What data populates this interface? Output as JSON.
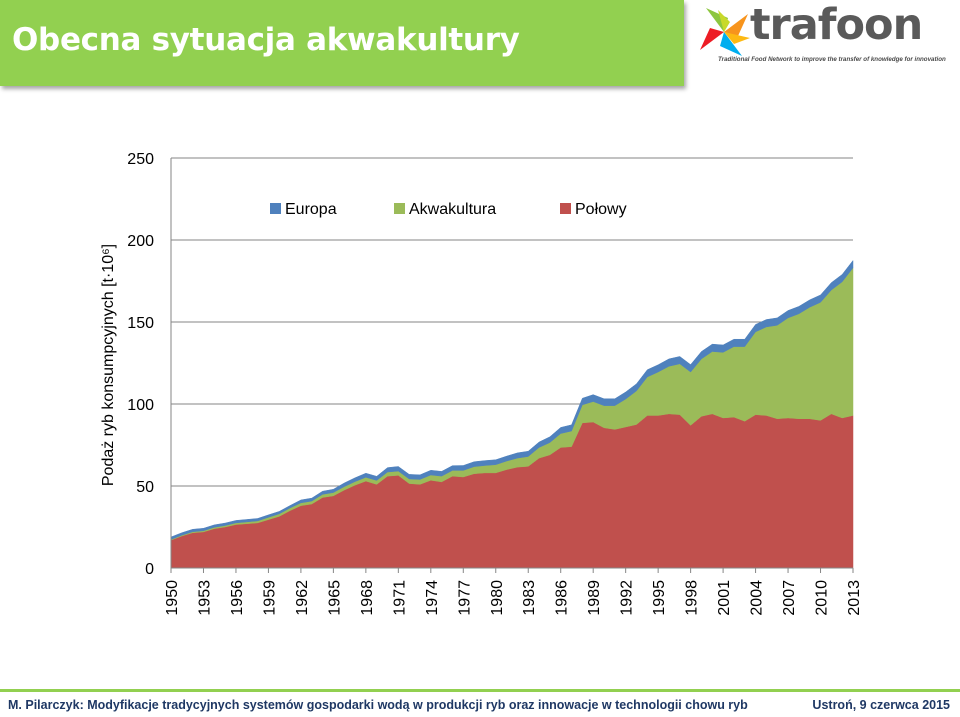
{
  "slide": {
    "title": "Obecna sytuacja akwakultury"
  },
  "logo": {
    "word": "trafoon",
    "tagline": "Traditional Food Network to improve the transfer of knowledge for innovation"
  },
  "footer": {
    "left": "M. Pilarczyk: Modyfikacje tradycyjnych systemów gospodarki wodą w produkcji ryb oraz innowacje w technologii chowu ryb",
    "right": "Ustroń, 9 czerwca 2015"
  },
  "colors": {
    "title_bar": "#92d050",
    "europa": "#4f81bd",
    "akwakultura": "#9bbb59",
    "polowy": "#c0504d"
  },
  "chart_data": {
    "type": "area",
    "stacked": true,
    "title": "",
    "xlabel": "",
    "ylabel": "Podaż ryb konsumpcyjnych [t·10⁶]",
    "ylim": [
      0,
      250
    ],
    "yticks": [
      0,
      50,
      100,
      150,
      200,
      250
    ],
    "grid": true,
    "legend_position": "top",
    "x": [
      1950,
      1951,
      1952,
      1953,
      1954,
      1955,
      1956,
      1957,
      1958,
      1959,
      1960,
      1961,
      1962,
      1963,
      1964,
      1965,
      1966,
      1967,
      1968,
      1969,
      1970,
      1971,
      1972,
      1973,
      1974,
      1975,
      1976,
      1977,
      1978,
      1979,
      1980,
      1981,
      1982,
      1983,
      1984,
      1985,
      1986,
      1987,
      1988,
      1989,
      1990,
      1991,
      1992,
      1993,
      1994,
      1995,
      1996,
      1997,
      1998,
      1999,
      2000,
      2001,
      2002,
      2003,
      2004,
      2005,
      2006,
      2007,
      2008,
      2009,
      2010,
      2011,
      2012,
      2013
    ],
    "xtick_labels": [
      "1950",
      "1953",
      "1956",
      "1959",
      "1962",
      "1965",
      "1968",
      "1971",
      "1974",
      "1977",
      "1980",
      "1983",
      "1986",
      "1989",
      "1992",
      "1995",
      "1998",
      "2001",
      "2004",
      "2007",
      "2010",
      "2013"
    ],
    "series": [
      {
        "name": "Połowy",
        "color": "#c0504d",
        "values": [
          17,
          19.5,
          21.5,
          22,
          24,
          25,
          26.5,
          27,
          27.5,
          29.5,
          31.5,
          35,
          38,
          39,
          43,
          44,
          47.5,
          50.5,
          53,
          51,
          56,
          56.5,
          51.5,
          51,
          53.5,
          52.5,
          56,
          55.5,
          57.5,
          58,
          58,
          60,
          61.5,
          62,
          67,
          69,
          73.5,
          74,
          88.5,
          89,
          85.5,
          84.5,
          86,
          87.5,
          93,
          93,
          94,
          93.5,
          87,
          92.5,
          94,
          91.5,
          92,
          89.5,
          93.5,
          93,
          91,
          91.5,
          91,
          91,
          90,
          94,
          91.5,
          93
        ]
      },
      {
        "name": "Akwakultura",
        "color": "#9bbb59",
        "values": [
          0.4,
          0.5,
          0.6,
          0.7,
          0.8,
          0.9,
          1,
          1.1,
          1.2,
          1.4,
          1.5,
          1.6,
          1.7,
          1.8,
          1.9,
          2,
          2.1,
          2.2,
          2.3,
          2.4,
          2.5,
          2.6,
          2.8,
          3,
          3.2,
          3.5,
          3.5,
          4,
          4.3,
          4.5,
          5,
          5.2,
          5.5,
          6,
          6.5,
          7.5,
          8.5,
          9.5,
          11,
          12.5,
          13.5,
          14.5,
          17,
          20.5,
          23.5,
          26.5,
          29,
          31,
          32.5,
          35,
          38,
          40,
          43,
          45.5,
          50.5,
          54,
          57,
          61,
          64,
          68,
          72,
          75.5,
          83,
          90
        ]
      },
      {
        "name": "Europa",
        "color": "#4f81bd",
        "values": [
          1.5,
          1.5,
          1.5,
          1.5,
          1.5,
          1.5,
          1.5,
          1.5,
          1.5,
          1.5,
          1.5,
          1.5,
          1.8,
          1.8,
          1.9,
          2,
          2.2,
          2.3,
          2.5,
          2.5,
          2.7,
          2.8,
          2.8,
          2.8,
          2.9,
          2.9,
          2.9,
          3,
          3,
          3,
          3,
          3,
          3.2,
          3.2,
          3.3,
          3.5,
          3.7,
          3.8,
          4,
          4.2,
          4.2,
          4.2,
          4.3,
          4.3,
          4.4,
          4.4,
          4.5,
          4.5,
          4.5,
          4.5,
          4.5,
          4.5,
          4.5,
          4.5,
          4.5,
          4.5,
          4.5,
          4.5,
          4.5,
          4.5,
          4.5,
          4.5,
          4.5,
          4.5
        ]
      }
    ],
    "legend_order": [
      "Europa",
      "Akwakultura",
      "Połowy"
    ]
  }
}
